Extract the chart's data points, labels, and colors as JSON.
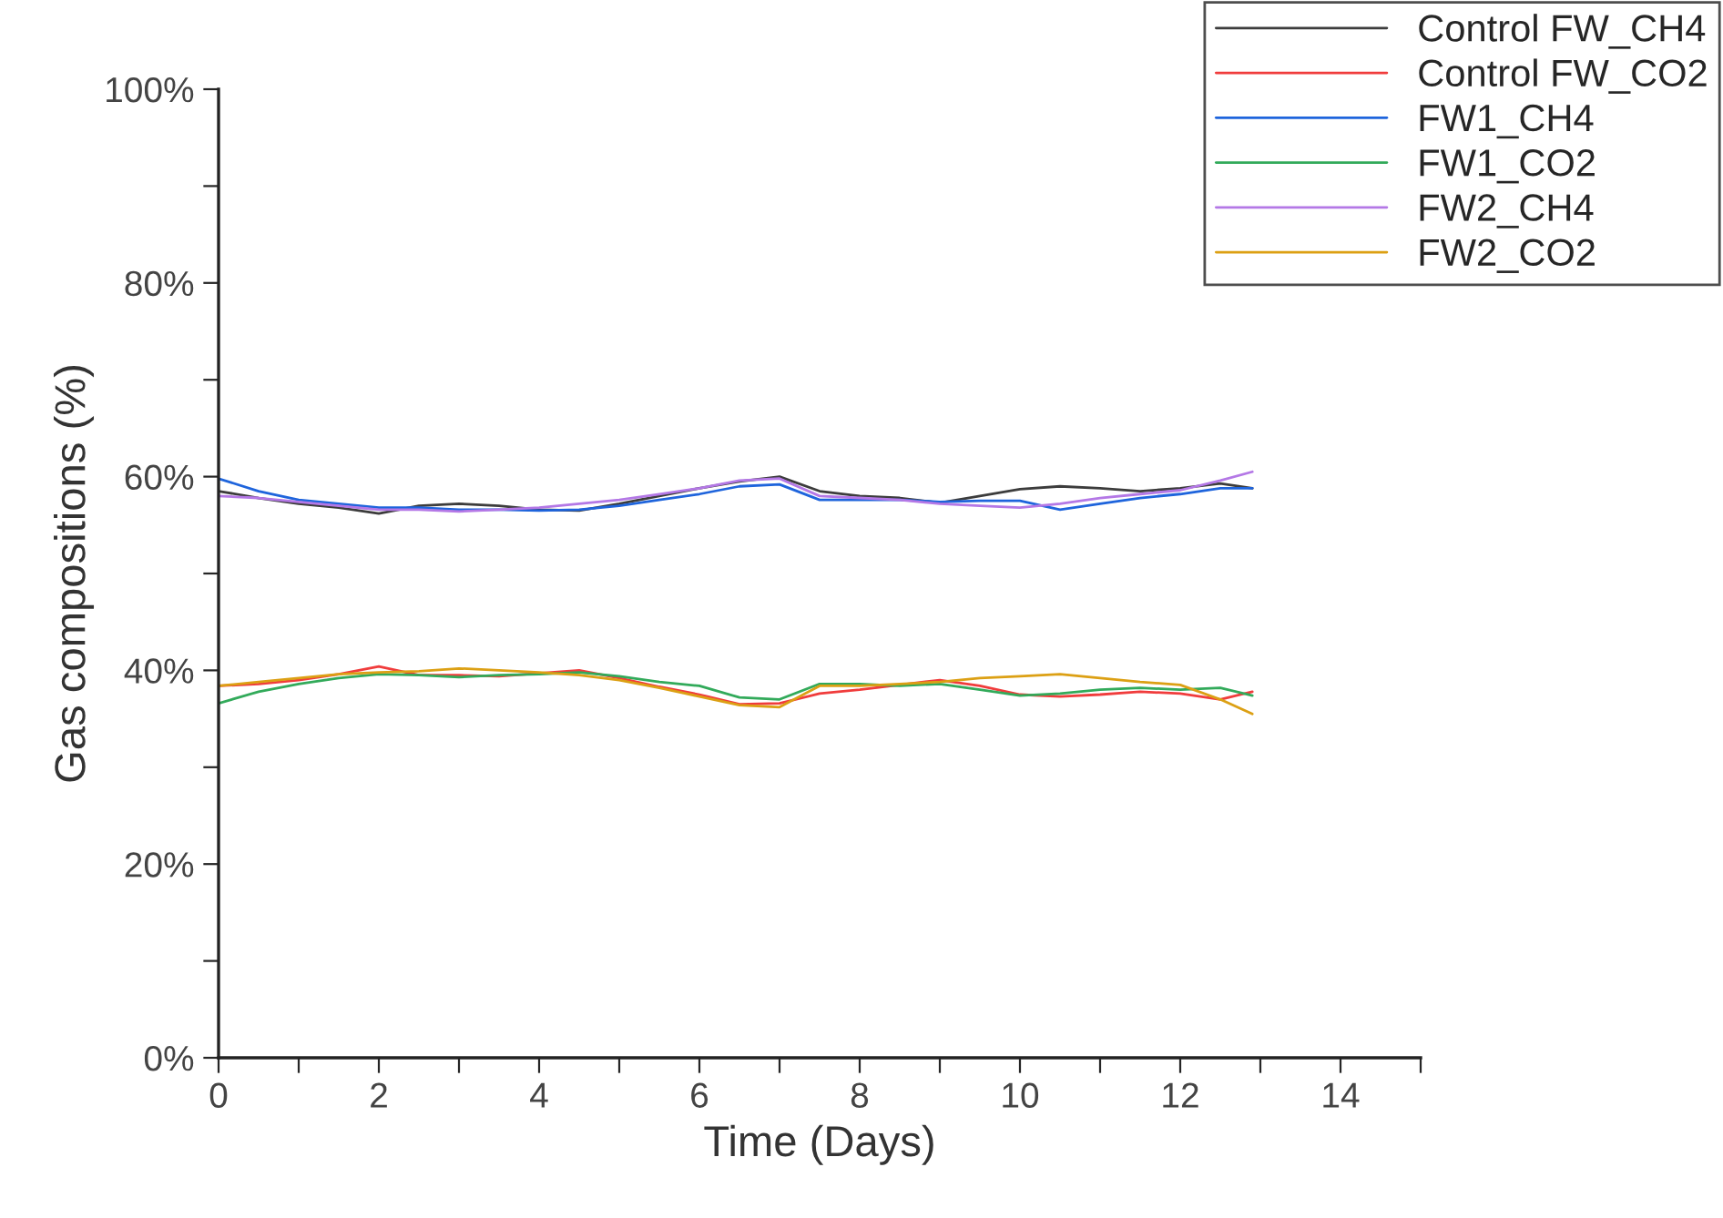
{
  "chart_data": {
    "type": "line",
    "xlabel": "Time (Days)",
    "ylabel": "Gas compositions (%)",
    "x": [
      0,
      0.5,
      1,
      1.5,
      2,
      2.5,
      3,
      3.5,
      4,
      4.5,
      5,
      5.5,
      6,
      6.5,
      7,
      7.5,
      8,
      8.5,
      9,
      9.5,
      10,
      10.5,
      11,
      11.5,
      12,
      12.5,
      12.9
    ],
    "series": [
      {
        "name": "Control FW_CH4",
        "color": "#3c3c3c",
        "values": [
          58.5,
          57.8,
          57.2,
          56.8,
          56.2,
          57.0,
          57.2,
          57.0,
          56.6,
          56.5,
          57.2,
          58.0,
          58.8,
          59.5,
          60.0,
          58.5,
          58.0,
          57.8,
          57.3,
          58.0,
          58.7,
          59.0,
          58.8,
          58.5,
          58.8,
          59.3,
          58.8
        ]
      },
      {
        "name": "Control FW_CO2",
        "color": "#f03c3c",
        "values": [
          38.4,
          38.6,
          39.0,
          39.6,
          40.4,
          39.5,
          39.5,
          39.4,
          39.7,
          40.0,
          39.2,
          38.3,
          37.5,
          36.5,
          36.6,
          37.6,
          38.0,
          38.5,
          39.0,
          38.4,
          37.5,
          37.3,
          37.5,
          37.8,
          37.6,
          37.0,
          37.8
        ]
      },
      {
        "name": "FW1_CH4",
        "color": "#1e64dc",
        "values": [
          59.8,
          58.5,
          57.6,
          57.2,
          56.8,
          56.8,
          56.6,
          56.6,
          56.5,
          56.6,
          57.0,
          57.6,
          58.2,
          59.0,
          59.2,
          57.6,
          57.6,
          57.6,
          57.4,
          57.5,
          57.5,
          56.6,
          57.2,
          57.8,
          58.2,
          58.8,
          58.8
        ]
      },
      {
        "name": "FW1_CO2",
        "color": "#32aa5a",
        "values": [
          36.6,
          37.8,
          38.6,
          39.2,
          39.6,
          39.5,
          39.3,
          39.5,
          39.6,
          39.8,
          39.4,
          38.8,
          38.4,
          37.2,
          37.0,
          38.6,
          38.6,
          38.4,
          38.6,
          38.0,
          37.4,
          37.6,
          38.0,
          38.2,
          38.0,
          38.2,
          37.4
        ]
      },
      {
        "name": "FW2_CH4",
        "color": "#b478e6",
        "values": [
          58.0,
          57.8,
          57.4,
          57.0,
          56.6,
          56.6,
          56.4,
          56.6,
          56.8,
          57.2,
          57.6,
          58.2,
          58.8,
          59.6,
          59.8,
          58.0,
          57.8,
          57.6,
          57.2,
          57.0,
          56.8,
          57.2,
          57.8,
          58.2,
          58.6,
          59.6,
          60.5
        ]
      },
      {
        "name": "FW2_CO2",
        "color": "#dca014",
        "values": [
          38.4,
          38.8,
          39.2,
          39.6,
          39.8,
          39.9,
          40.2,
          40.0,
          39.8,
          39.5,
          39.0,
          38.2,
          37.3,
          36.4,
          36.2,
          38.4,
          38.4,
          38.6,
          38.8,
          39.2,
          39.4,
          39.6,
          39.2,
          38.8,
          38.5,
          37.0,
          35.5
        ]
      }
    ],
    "xlim": [
      0,
      15
    ],
    "ylim": [
      0,
      100
    ],
    "xticks": [
      0,
      {
        "value": 1,
        "label": null
      },
      2,
      {
        "value": 3,
        "label": null
      },
      4,
      {
        "value": 5,
        "label": null
      },
      6,
      {
        "value": 7,
        "label": null
      },
      8,
      {
        "value": 9,
        "label": null
      },
      10,
      {
        "value": 11,
        "label": null
      },
      12,
      {
        "value": 13,
        "label": null
      },
      14,
      {
        "value": 15,
        "label": null
      }
    ],
    "yticks": [
      {
        "value": 0,
        "label": "0%"
      },
      {
        "value": 10,
        "label": null
      },
      {
        "value": 20,
        "label": "20%"
      },
      {
        "value": 30,
        "label": null
      },
      {
        "value": 40,
        "label": "40%"
      },
      {
        "value": 50,
        "label": null
      },
      {
        "value": 60,
        "label": "60%"
      },
      {
        "value": 70,
        "label": null
      },
      {
        "value": 80,
        "label": "80%"
      },
      {
        "value": 90,
        "label": null
      },
      {
        "value": 100,
        "label": "100%"
      }
    ],
    "legend": "top right",
    "grid": false,
    "marker": "none",
    "line_style": "solid"
  }
}
